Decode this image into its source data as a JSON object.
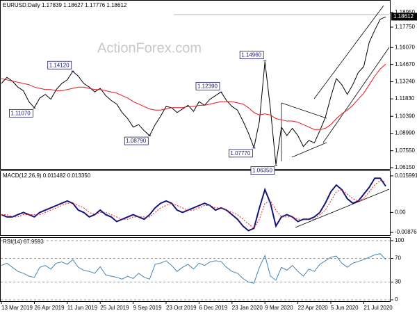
{
  "watermark": "ActionForex.com",
  "chart_data": [
    {
      "type": "line",
      "title": "EURUSD.Daily 1.17839 1.18627 1.17776 1.18612",
      "ylim": [
        1.0604,
        1.1993
      ],
      "yticks": [
        {
          "value": 1.1895,
          "label": "1.18950"
        },
        {
          "value": 1.1775,
          "label": "1.17750"
        },
        {
          "value": 1.1607,
          "label": "1.16070"
        },
        {
          "value": 1.1467,
          "label": "1.14670"
        },
        {
          "value": 1.1324,
          "label": "1.13240"
        },
        {
          "value": 1.1183,
          "label": "1.11830"
        },
        {
          "value": 1.1039,
          "label": "1.10390"
        },
        {
          "value": 1.0899,
          "label": "1.08990"
        },
        {
          "value": 1.0755,
          "label": "1.07550"
        },
        {
          "value": 1.0615,
          "label": "1.06150"
        }
      ],
      "last_price": 1.18612,
      "series": [
        {
          "color": "#000000",
          "values": [
            1.131,
            1.136,
            1.133,
            1.128,
            1.125,
            1.116,
            1.111,
            1.119,
            1.122,
            1.118,
            1.126,
            1.131,
            1.134,
            1.141,
            1.137,
            1.131,
            1.128,
            1.124,
            1.127,
            1.121,
            1.117,
            1.114,
            1.107,
            1.102,
            1.095,
            1.097,
            1.092,
            1.088,
            1.097,
            1.104,
            1.112,
            1.111,
            1.107,
            1.11,
            1.113,
            1.108,
            1.116,
            1.113,
            1.118,
            1.121,
            1.124,
            1.117,
            1.112,
            1.109,
            1.1,
            1.09,
            1.078,
            1.1,
            1.149,
            1.11,
            1.064,
            1.095,
            1.088,
            1.094,
            1.088,
            1.079,
            1.084,
            1.082,
            1.092,
            1.103,
            1.12,
            1.135,
            1.13,
            1.122,
            1.13,
            1.14,
            1.145,
            1.165,
            1.175,
            1.184,
            1.186
          ]
        },
        {
          "color": "#e8141e",
          "values": [
            1.135,
            1.134,
            1.133,
            1.132,
            1.131,
            1.13,
            1.128,
            1.127,
            1.126,
            1.126,
            1.125,
            1.125,
            1.126,
            1.127,
            1.128,
            1.128,
            1.127,
            1.126,
            1.126,
            1.125,
            1.124,
            1.123,
            1.121,
            1.119,
            1.116,
            1.114,
            1.112,
            1.11,
            1.109,
            1.109,
            1.11,
            1.111,
            1.111,
            1.111,
            1.112,
            1.112,
            1.113,
            1.113,
            1.114,
            1.115,
            1.116,
            1.116,
            1.116,
            1.115,
            1.114,
            1.111,
            1.107,
            1.105,
            1.106,
            1.105,
            1.102,
            1.101,
            1.1,
            1.1,
            1.099,
            1.097,
            1.095,
            1.093,
            1.093,
            1.094,
            1.097,
            1.102,
            1.106,
            1.109,
            1.113,
            1.118,
            1.123,
            1.13,
            1.137,
            1.143,
            1.147
          ]
        }
      ],
      "annotations": [
        {
          "value": 1.1412,
          "label": "1.14120"
        },
        {
          "value": 1.1107,
          "label": "1.11070"
        },
        {
          "value": 1.0879,
          "label": "1.08790"
        },
        {
          "value": 1.1239,
          "label": "1.12390"
        },
        {
          "value": 1.0777,
          "label": "1.07770"
        },
        {
          "value": 1.1496,
          "label": "1.14960"
        },
        {
          "value": 1.0635,
          "label": "1.06350"
        }
      ]
    },
    {
      "type": "line",
      "title": "MACD(12,26,9) 0.011482 0.013350",
      "ylim": [
        -0.00995,
        0.0181
      ],
      "yticks": [
        0.015991,
        {
          "value": 0,
          "label": "0.00"
        },
        -0.00876
      ],
      "series": [
        {
          "color": "#14147a",
          "values": [
            -0.001,
            -0.002,
            -0.002,
            -0.001,
            0,
            -0.001,
            -0.002,
            0,
            0.001,
            0.002,
            0.003,
            0.004,
            0.005,
            0.004,
            0.001,
            0,
            -0.002,
            -0.001,
            0.001,
            -0.001,
            -0.002,
            -0.004,
            -0.003,
            -0.002,
            -0.001,
            -0.002,
            -0.003,
            -0.001,
            0.002,
            0.004,
            0.005,
            0.004,
            0.001,
            0,
            0.001,
            0.002,
            0.003,
            0.004,
            0.003,
            0.001,
            0.002,
            0.001,
            -0.001,
            -0.003,
            -0.006,
            -0.008,
            -0.007,
            0.002,
            0.01,
            0.004,
            -0.006,
            -0.002,
            -0.001,
            -0.002,
            -0.004,
            -0.003,
            -0.003,
            -0.002,
            0,
            0.004,
            0.009,
            0.012,
            0.01,
            0.006,
            0.004,
            0.005,
            0.008,
            0.011,
            0.015,
            0.015,
            0.011482
          ]
        },
        {
          "color": "#e8141e",
          "dashed": true,
          "values": [
            -0.001,
            -0.001,
            -0.002,
            -0.002,
            -0.001,
            -0.001,
            -0.001,
            -0.001,
            0,
            0.001,
            0.002,
            0.003,
            0.004,
            0.004,
            0.003,
            0.002,
            0,
            -0.001,
            0,
            0,
            -0.001,
            -0.002,
            -0.003,
            -0.003,
            -0.002,
            -0.002,
            -0.002,
            -0.002,
            0,
            0.002,
            0.003,
            0.004,
            0.003,
            0.002,
            0.001,
            0.001,
            0.002,
            0.003,
            0.003,
            0.002,
            0.002,
            0.001,
            0,
            -0.001,
            -0.003,
            -0.005,
            -0.007,
            -0.003,
            0.004,
            0.005,
            0.001,
            -0.002,
            -0.002,
            -0.002,
            -0.003,
            -0.003,
            -0.003,
            -0.003,
            -0.001,
            0.001,
            0.005,
            0.009,
            0.01,
            0.008,
            0.006,
            0.005,
            0.006,
            0.009,
            0.012,
            0.014,
            0.01335
          ]
        }
      ]
    },
    {
      "type": "line",
      "title": "RSI(14) 67.9593",
      "ylim": [
        -2.3,
        104.7
      ],
      "yticks": [
        100,
        70,
        30,
        0
      ],
      "grid": true,
      "series": [
        {
          "color": "#4682b4",
          "values": [
            58,
            62,
            55,
            48,
            45,
            40,
            38,
            55,
            58,
            52,
            62,
            64,
            60,
            68,
            55,
            50,
            48,
            45,
            56,
            42,
            40,
            38,
            35,
            40,
            36,
            45,
            38,
            35,
            60,
            62,
            66,
            58,
            48,
            55,
            60,
            52,
            62,
            58,
            64,
            66,
            65,
            55,
            48,
            45,
            36,
            30,
            28,
            55,
            75,
            40,
            33,
            55,
            50,
            58,
            48,
            40,
            52,
            48,
            60,
            66,
            72,
            74,
            62,
            55,
            62,
            65,
            68,
            72,
            76,
            78,
            67.9593
          ]
        }
      ],
      "categories": [
        "13 Mar 2019",
        null,
        null,
        null,
        null,
        null,
        "26 Apr 2019",
        null,
        null,
        null,
        null,
        null,
        "11 Jun 2019",
        null,
        null,
        null,
        null,
        null,
        "25 Jul 2019",
        null,
        null,
        null,
        null,
        null,
        "9 Sep 2019",
        null,
        null,
        null,
        null,
        null,
        "23 Oct 2019",
        null,
        null,
        null,
        null,
        null,
        "6 Dec 2019",
        null,
        null,
        null,
        null,
        null,
        "23 Jan 2020",
        null,
        null,
        null,
        null,
        null,
        "9 Mar 2020",
        null,
        null,
        null,
        null,
        null,
        "22 Apr 2020",
        null,
        null,
        null,
        null,
        null,
        "5 Jun 2020",
        null,
        null,
        null,
        null,
        null,
        "21 Jul 2020",
        null,
        null,
        null,
        null
      ]
    }
  ]
}
